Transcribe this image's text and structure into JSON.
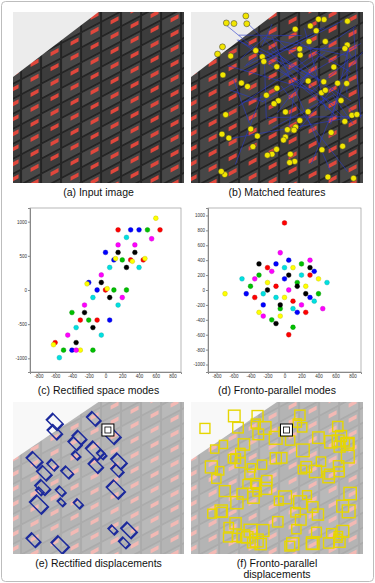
{
  "figure": {
    "panels": [
      {
        "caption": "(a) Input image"
      },
      {
        "caption": "(b) Matched features"
      },
      {
        "caption": "(e) Rectified displacements"
      },
      {
        "caption": "(f) Fronto-parallel displacements"
      }
    ]
  },
  "chart_data": [
    {
      "type": "scatter",
      "title": "(c) Rectified space modes",
      "xlim": [
        -900,
        900
      ],
      "ylim": [
        -1200,
        1200
      ],
      "xticks": [
        -800,
        -600,
        -400,
        -200,
        0,
        200,
        400,
        600,
        800
      ],
      "yticks": [
        -1000,
        -500,
        0,
        500,
        1000
      ],
      "marker": "circle",
      "series": [
        {
          "color": "#ff0000",
          "x": [
            -600,
            -300,
            0,
            300,
            450,
            650,
            -100,
            150
          ],
          "values": [
            -770,
            -440,
            0,
            440,
            440,
            880,
            -440,
            880
          ]
        },
        {
          "color": "#00c000",
          "x": [
            -500,
            -200,
            100,
            200,
            -400,
            250,
            500,
            -150
          ],
          "values": [
            -880,
            -440,
            0,
            440,
            -330,
            0,
            880,
            -880
          ]
        },
        {
          "color": "#0000ff",
          "x": [
            -400,
            -100,
            0,
            100,
            300,
            50,
            -200,
            400
          ],
          "values": [
            -880,
            0,
            550,
            440,
            880,
            -440,
            110,
            880
          ]
        },
        {
          "color": "#ffff00",
          "x": [
            -300,
            -220,
            20,
            120,
            320,
            470,
            -620,
            600
          ],
          "values": [
            -880,
            90,
            20,
            460,
            420,
            460,
            -800,
            1050
          ]
        },
        {
          "color": "#ff00ff",
          "x": [
            -450,
            -250,
            -50,
            150,
            350,
            -350,
            200,
            550
          ],
          "values": [
            -660,
            -220,
            220,
            660,
            660,
            -880,
            -110,
            750
          ]
        },
        {
          "color": "#00e0e0",
          "x": [
            -350,
            -150,
            50,
            250,
            -50,
            150,
            400,
            -550
          ],
          "values": [
            -550,
            -110,
            330,
            770,
            -660,
            -220,
            330,
            -990
          ]
        },
        {
          "color": "#000000",
          "x": [
            -250,
            -50,
            150,
            -150,
            50,
            250,
            -350,
            350
          ],
          "values": [
            -330,
            110,
            550,
            -550,
            -110,
            330,
            -770,
            550
          ]
        }
      ]
    },
    {
      "type": "scatter",
      "title": "(d) Fronto-parallel modes",
      "xlim": [
        -900,
        900
      ],
      "ylim": [
        -1100,
        1100
      ],
      "xticks": [
        -800,
        -600,
        -400,
        -200,
        0,
        200,
        400,
        600,
        800
      ],
      "yticks": [
        -1000,
        -800,
        -600,
        -400,
        -200,
        0,
        200,
        400,
        600,
        800,
        1000
      ],
      "marker": "circle",
      "series": [
        {
          "color": "#ff0000",
          "x": [
            -200,
            100,
            300,
            -350,
            0,
            50,
            -100,
            250
          ],
          "values": [
            300,
            -150,
            200,
            -100,
            900,
            -600,
            50,
            -300
          ]
        },
        {
          "color": "#00c000",
          "x": [
            -300,
            150,
            -50,
            400,
            200,
            -150,
            -400,
            100
          ],
          "values": [
            200,
            100,
            -250,
            -50,
            350,
            -400,
            50,
            -500
          ]
        },
        {
          "color": "#0000ff",
          "x": [
            -250,
            0,
            300,
            -100,
            150,
            350,
            -450,
            50
          ],
          "values": [
            -200,
            150,
            -100,
            350,
            -300,
            250,
            -50,
            400
          ]
        },
        {
          "color": "#ffff00",
          "x": [
            -700,
            -200,
            100,
            250,
            -50,
            400,
            -300,
            0
          ],
          "values": [
            -50,
            100,
            300,
            50,
            -350,
            150,
            -300,
            -100
          ]
        },
        {
          "color": "#ff00ff",
          "x": [
            -150,
            200,
            -350,
            50,
            300,
            -250,
            450,
            -50
          ],
          "values": [
            250,
            -200,
            150,
            0,
            400,
            -350,
            -250,
            500
          ]
        },
        {
          "color": "#00e0e0",
          "x": [
            -500,
            -100,
            200,
            350,
            0,
            -250,
            100,
            500
          ],
          "values": [
            150,
            -100,
            200,
            -150,
            300,
            -50,
            -250,
            100
          ]
        },
        {
          "color": "#000000",
          "x": [
            -200,
            50,
            250,
            -50,
            150,
            -300,
            300,
            -100
          ],
          "values": [
            0,
            200,
            -50,
            -200,
            50,
            350,
            300,
            -450
          ]
        }
      ]
    }
  ]
}
